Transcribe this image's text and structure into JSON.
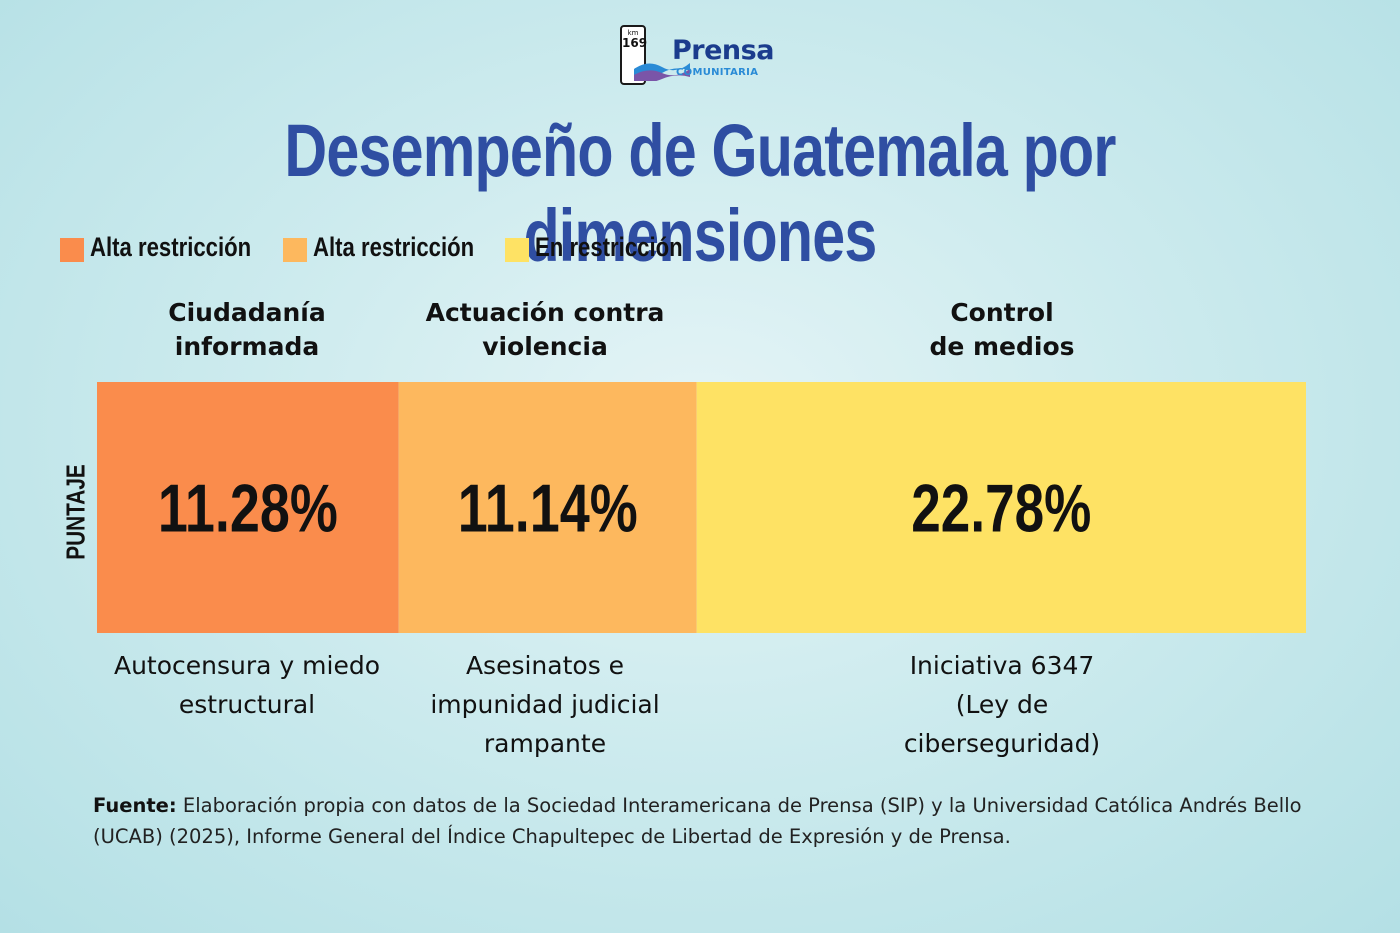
{
  "logo": {
    "sign_km": "km",
    "sign_number": "169",
    "name": "Prensa",
    "subtitle": "COMUNITARIA"
  },
  "title": "Desempeño de Guatemala por dimensiones",
  "legend": [
    {
      "label": "Alta restricción",
      "color": "#fa8c4c"
    },
    {
      "label": "Alta restricción",
      "color": "#fdb85e"
    },
    {
      "label": "En restricción",
      "color": "#fee264"
    }
  ],
  "axis_label": "PUNTAJE",
  "chart_data": {
    "type": "table",
    "title": "Desempeño de Guatemala por dimensiones",
    "ylabel": "PUNTAJE",
    "categories": [
      "Ciudadanía informada",
      "Actuación contra violencia",
      "Control de medios"
    ],
    "values": [
      11.28,
      11.14,
      22.78
    ],
    "value_labels": [
      "11.28%",
      "11.14%",
      "22.78%"
    ],
    "colors": [
      "#fa8c4c",
      "#fdb85e",
      "#fee264"
    ],
    "descriptions": [
      "Autocensura y miedo estructural",
      "Asesinatos e impunidad judicial rampante",
      "Iniciativa 6347 (Ley de ciberseguridad)"
    ],
    "columns": [
      {
        "header_lines": [
          "Ciudadanía",
          "informada"
        ],
        "desc_lines": [
          "Autocensura y miedo",
          "estructural"
        ]
      },
      {
        "header_lines": [
          "Actuación contra",
          "violencia"
        ],
        "desc_lines": [
          "Asesinatos e",
          "impunidad judicial",
          "rampante"
        ]
      },
      {
        "header_lines": [
          "Control",
          "de medios"
        ],
        "desc_lines": [
          "Iniciativa 6347",
          "(Ley de",
          "ciberseguridad)"
        ]
      }
    ]
  },
  "source": {
    "label": "Fuente:",
    "text": "Elaboración propia con datos de la Sociedad Interamericana de Prensa (SIP) y la Universidad Católica Andrés Bello (UCAB) (2025), Informe General del Índice Chapultepec de Libertad de Expresión y de Prensa."
  }
}
